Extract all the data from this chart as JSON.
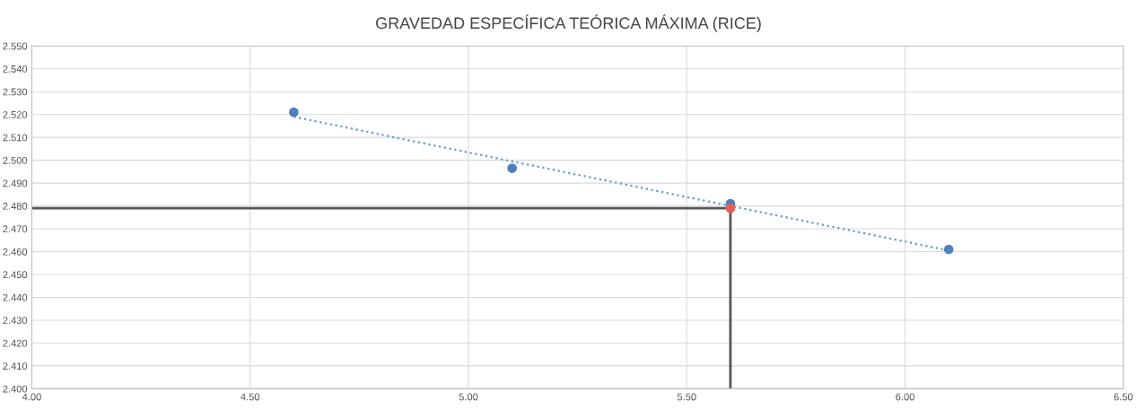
{
  "chart_data": {
    "type": "scatter",
    "title": "GRAVEDAD ESPECÍFICA TEÓRICA MÁXIMA (RICE)",
    "series": [
      {
        "type": "line",
        "color": "#555555",
        "x": [
          4.0,
          5.6,
          5.6
        ],
        "values": [
          2.479,
          2.479,
          2.4
        ],
        "line_style": "solid"
      },
      {
        "type": "line",
        "color": "#5b9bd5",
        "x": [
          4.6,
          6.1
        ],
        "values": [
          2.519,
          2.4605
        ],
        "line_style": "dotted"
      },
      {
        "color": "#4f81bd",
        "x": [
          4.6,
          5.1,
          5.6,
          6.1
        ],
        "values": [
          2.521,
          2.4965,
          2.481,
          2.461
        ],
        "marker": "circle"
      },
      {
        "color": "#e0605a",
        "x": [
          5.6
        ],
        "values": [
          2.479
        ],
        "marker": "circle"
      }
    ],
    "xlim": [
      4.0,
      6.5
    ],
    "xticks": [
      {
        "value": 4.0,
        "label": "4.00"
      },
      {
        "value": 4.5,
        "label": "4.50"
      },
      {
        "value": 5.0,
        "label": "5.00"
      },
      {
        "value": 5.5,
        "label": "5.50"
      },
      {
        "value": 6.0,
        "label": "6.00"
      },
      {
        "value": 6.5,
        "label": "6.50"
      }
    ],
    "ylim": [
      2.4,
      2.55
    ],
    "yticks": [
      {
        "value": 2.4,
        "label": "2.400"
      },
      {
        "value": 2.41,
        "label": "2.410"
      },
      {
        "value": 2.42,
        "label": "2.420"
      },
      {
        "value": 2.43,
        "label": "2.430"
      },
      {
        "value": 2.44,
        "label": "2.440"
      },
      {
        "value": 2.45,
        "label": "2.450"
      },
      {
        "value": 2.46,
        "label": "2.460"
      },
      {
        "value": 2.47,
        "label": "2.470"
      },
      {
        "value": 2.48,
        "label": "2.480"
      },
      {
        "value": 2.49,
        "label": "2.490"
      },
      {
        "value": 2.5,
        "label": "2.500"
      },
      {
        "value": 2.51,
        "label": "2.510"
      },
      {
        "value": 2.52,
        "label": "2.520"
      },
      {
        "value": 2.53,
        "label": "2.530"
      },
      {
        "value": 2.54,
        "label": "2.540"
      },
      {
        "value": 2.55,
        "label": "2.550"
      }
    ],
    "grid": true
  }
}
